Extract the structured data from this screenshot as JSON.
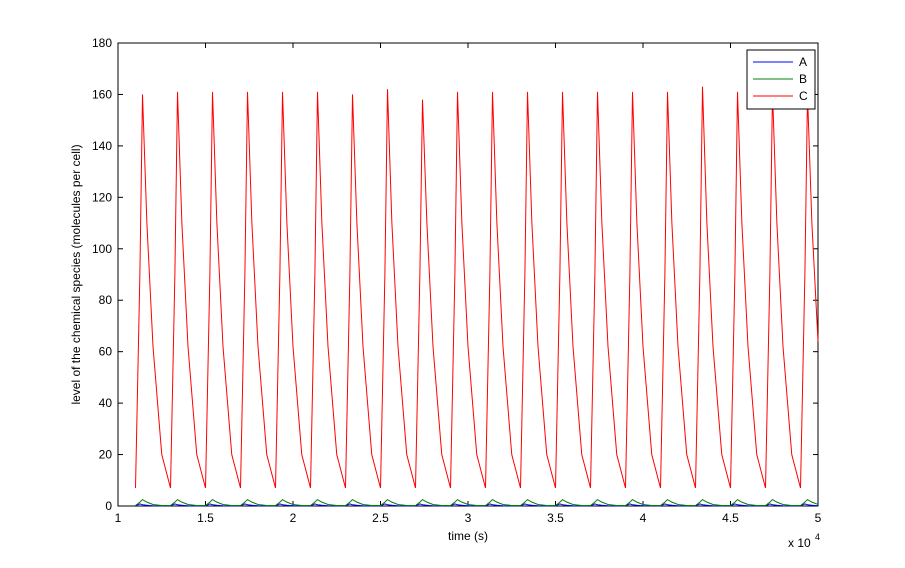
{
  "chart_data": {
    "type": "line",
    "xlabel": "time (s)",
    "ylabel": "level of the chemical species (molecules per cell)",
    "x_multiplier": "x 10",
    "x_multiplier_exponent": "4",
    "xlim": [
      10000,
      50000
    ],
    "xticks": [
      {
        "value": 10000,
        "label": "1"
      },
      {
        "value": 15000,
        "label": "1.5"
      },
      {
        "value": 20000,
        "label": "2"
      },
      {
        "value": 25000,
        "label": "2.5"
      },
      {
        "value": 30000,
        "label": "3"
      },
      {
        "value": 35000,
        "label": "3.5"
      },
      {
        "value": 40000,
        "label": "4"
      },
      {
        "value": 45000,
        "label": "4.5"
      },
      {
        "value": 50000,
        "label": "5"
      }
    ],
    "ylim": [
      0,
      180
    ],
    "yticks": [
      0,
      20,
      40,
      60,
      80,
      100,
      120,
      140,
      160,
      180
    ],
    "grid": false,
    "legend": "top-right",
    "x": [
      11000,
      11250,
      11400,
      11650,
      12000,
      12500,
      13000,
      13250,
      13400,
      13650,
      14000,
      14500,
      15000,
      15250,
      15400,
      15650,
      16000,
      16500,
      17000,
      17250,
      17400,
      17650,
      18000,
      18500,
      19000,
      19250,
      19400,
      19650,
      20000,
      20500,
      21000,
      21250,
      21400,
      21650,
      22000,
      22500,
      23000,
      23250,
      23400,
      23650,
      24000,
      24500,
      25000,
      25250,
      25400,
      25650,
      26000,
      26500,
      27000,
      27250,
      27400,
      27650,
      28000,
      28500,
      29000,
      29250,
      29400,
      29650,
      30000,
      30500,
      31000,
      31250,
      31400,
      31650,
      32000,
      32500,
      33000,
      33250,
      33400,
      33650,
      34000,
      34500,
      35000,
      35250,
      35400,
      35650,
      36000,
      36500,
      37000,
      37250,
      37400,
      37650,
      38000,
      38500,
      39000,
      39250,
      39400,
      39650,
      40000,
      40500,
      41000,
      41250,
      41400,
      41650,
      42000,
      42500,
      43000,
      43250,
      43400,
      43650,
      44000,
      44500,
      45000,
      45250,
      45400,
      45650,
      46000,
      46500,
      47000,
      47250,
      47400,
      47650,
      48000,
      48500,
      49000,
      49250,
      49400,
      49650,
      50000
    ],
    "series": [
      {
        "name": "A",
        "color": "#0000ff",
        "values": [
          0.1,
          0.8,
          0.5,
          0.3,
          0.1,
          0.05,
          0.1,
          0.8,
          0.5,
          0.3,
          0.1,
          0.05,
          0.1,
          0.8,
          0.5,
          0.3,
          0.1,
          0.05,
          0.1,
          0.8,
          0.5,
          0.3,
          0.1,
          0.05,
          0.1,
          0.8,
          0.5,
          0.3,
          0.1,
          0.05,
          0.1,
          0.8,
          0.5,
          0.3,
          0.1,
          0.05,
          0.1,
          0.8,
          0.5,
          0.3,
          0.1,
          0.05,
          0.1,
          0.8,
          0.5,
          0.3,
          0.1,
          0.05,
          0.1,
          0.8,
          0.5,
          0.3,
          0.1,
          0.05,
          0.1,
          0.8,
          0.5,
          0.3,
          0.1,
          0.05,
          0.1,
          0.8,
          0.5,
          0.3,
          0.1,
          0.05,
          0.1,
          0.8,
          0.5,
          0.3,
          0.1,
          0.05,
          0.1,
          0.8,
          0.5,
          0.3,
          0.1,
          0.05,
          0.1,
          0.8,
          0.5,
          0.3,
          0.1,
          0.05,
          0.1,
          0.8,
          0.5,
          0.3,
          0.1,
          0.05,
          0.1,
          0.8,
          0.5,
          0.3,
          0.1,
          0.05,
          0.1,
          0.8,
          0.5,
          0.3,
          0.1,
          0.05,
          0.1,
          0.8,
          0.5,
          0.3,
          0.1,
          0.05,
          0.1,
          0.8,
          0.5,
          0.3,
          0.1,
          0.05,
          0.1,
          0.8,
          0.5,
          0.3,
          0.1
        ]
      },
      {
        "name": "B",
        "color": "#008000",
        "values": [
          0.2,
          1.5,
          2.5,
          1.5,
          0.6,
          0.2,
          0.2,
          1.5,
          2.5,
          1.5,
          0.6,
          0.2,
          0.2,
          1.5,
          2.5,
          1.5,
          0.6,
          0.2,
          0.2,
          1.5,
          2.5,
          1.5,
          0.6,
          0.2,
          0.2,
          1.5,
          2.5,
          1.5,
          0.6,
          0.2,
          0.2,
          1.5,
          2.5,
          1.5,
          0.6,
          0.2,
          0.2,
          1.5,
          2.5,
          1.5,
          0.6,
          0.2,
          0.2,
          1.5,
          2.5,
          1.5,
          0.6,
          0.2,
          0.2,
          1.5,
          2.5,
          1.5,
          0.6,
          0.2,
          0.2,
          1.5,
          2.5,
          1.5,
          0.6,
          0.2,
          0.2,
          1.5,
          2.5,
          1.5,
          0.6,
          0.2,
          0.2,
          1.5,
          2.5,
          1.5,
          0.6,
          0.2,
          0.2,
          1.5,
          2.5,
          1.5,
          0.6,
          0.2,
          0.2,
          1.5,
          2.5,
          1.5,
          0.6,
          0.2,
          0.2,
          1.5,
          2.5,
          1.5,
          0.6,
          0.2,
          0.2,
          1.5,
          2.5,
          1.5,
          0.6,
          0.2,
          0.2,
          1.5,
          2.5,
          1.5,
          0.6,
          0.2,
          0.2,
          1.5,
          2.5,
          1.5,
          0.6,
          0.2,
          0.2,
          1.5,
          2.5,
          1.5,
          0.6,
          0.2,
          0.2,
          1.5,
          2.5,
          1.5,
          0.6
        ]
      },
      {
        "name": "C",
        "color": "#ff0000",
        "values": [
          7,
          90,
          160,
          110,
          62,
          20,
          7,
          90,
          161,
          110,
          62,
          20,
          7,
          90,
          161,
          110,
          62,
          20,
          7,
          90,
          161,
          110,
          62,
          20,
          7,
          90,
          161,
          110,
          62,
          20,
          7,
          90,
          161,
          110,
          62,
          20,
          7,
          90,
          160,
          110,
          62,
          20,
          7,
          90,
          162,
          110,
          62,
          20,
          7,
          90,
          158,
          110,
          62,
          20,
          7,
          90,
          161,
          110,
          62,
          20,
          7,
          90,
          161,
          110,
          62,
          20,
          7,
          90,
          161,
          110,
          62,
          20,
          7,
          90,
          161,
          110,
          62,
          20,
          7,
          90,
          161,
          110,
          62,
          20,
          7,
          90,
          161,
          110,
          62,
          20,
          7,
          90,
          161,
          110,
          62,
          20,
          7,
          90,
          163,
          110,
          62,
          20,
          7,
          90,
          161,
          110,
          62,
          20,
          7,
          90,
          161,
          110,
          62,
          20,
          7,
          90,
          160,
          110,
          64
        ]
      }
    ]
  }
}
